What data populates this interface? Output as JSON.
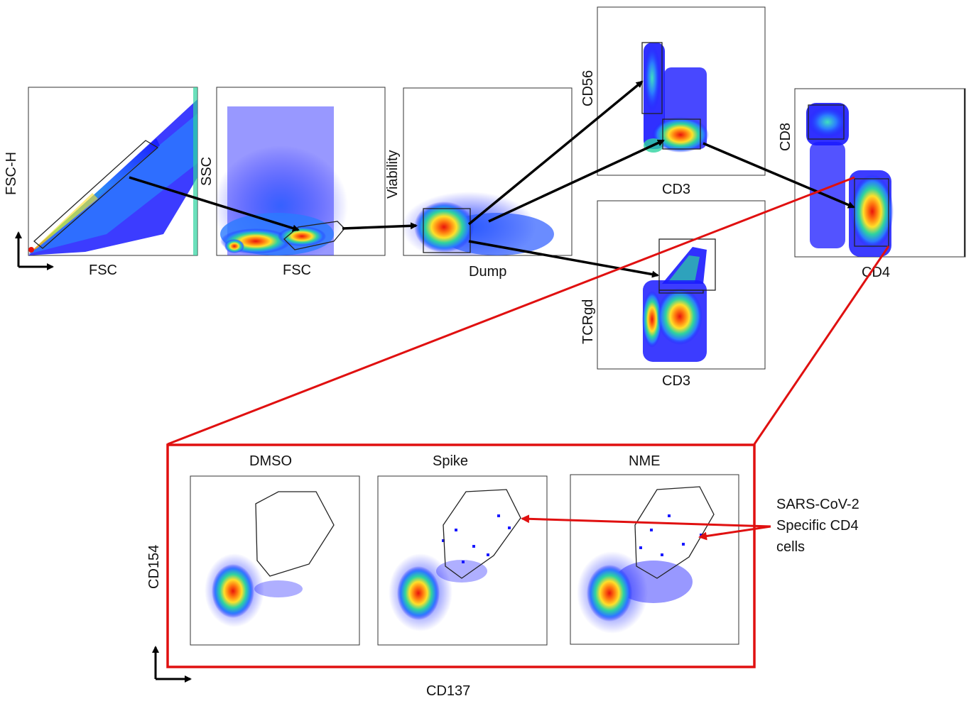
{
  "figure": {
    "top_plots": [
      {
        "id": "p1",
        "xlabel": "FSC",
        "ylabel": "FSC-H"
      },
      {
        "id": "p2",
        "xlabel": "FSC",
        "ylabel": "SSC"
      },
      {
        "id": "p3",
        "xlabel": "Dump",
        "ylabel": "Viability"
      },
      {
        "id": "p4",
        "xlabel": "CD3",
        "ylabel": "CD56"
      },
      {
        "id": "p5",
        "xlabel": "CD3",
        "ylabel": "TCRgd"
      },
      {
        "id": "p6",
        "xlabel": "CD4",
        "ylabel": "CD8"
      }
    ],
    "bottom_panel": {
      "ylabel": "CD154",
      "xlabel": "CD137",
      "plots": [
        {
          "id": "b1",
          "title": "DMSO"
        },
        {
          "id": "b2",
          "title": "Spike"
        },
        {
          "id": "b3",
          "title": "NME"
        }
      ]
    },
    "annotation": {
      "line1": "SARS-CoV-2",
      "line2": "Specific CD4",
      "line3": "cells"
    },
    "colors": {
      "density_low": "#1a1aff",
      "density_mid": "#2ed3a0",
      "density_high": "#ffe02a",
      "density_peak": "#e8140c",
      "zoom": "#e01010",
      "arrow": "#000000"
    }
  }
}
